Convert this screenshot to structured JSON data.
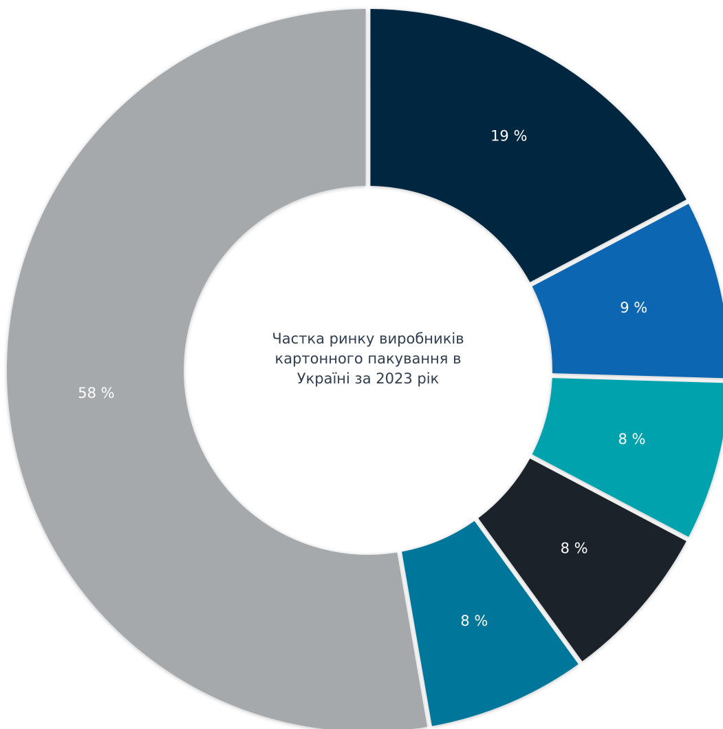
{
  "chart_data": {
    "type": "pie",
    "variant": "donut",
    "title_lines": [
      "Частка ринку виробників",
      "картонного пакування в",
      "Україні за 2023 рік"
    ],
    "slices": [
      {
        "value": 19,
        "label": "19 %",
        "color": "#03283f"
      },
      {
        "value": 9,
        "label": "9 %",
        "color": "#0b66b2"
      },
      {
        "value": 8,
        "label": "8 %",
        "color": "#00a3ad"
      },
      {
        "value": 8,
        "label": "8 %",
        "color": "#1f232b"
      },
      {
        "value": 8,
        "label": "8 %",
        "color": "#00769a"
      },
      {
        "value": 58,
        "label": "58 %",
        "color": "#a6a9ac"
      }
    ],
    "legend": "none",
    "label_color": "#ffffff",
    "title_color": "#2f3e4e"
  }
}
